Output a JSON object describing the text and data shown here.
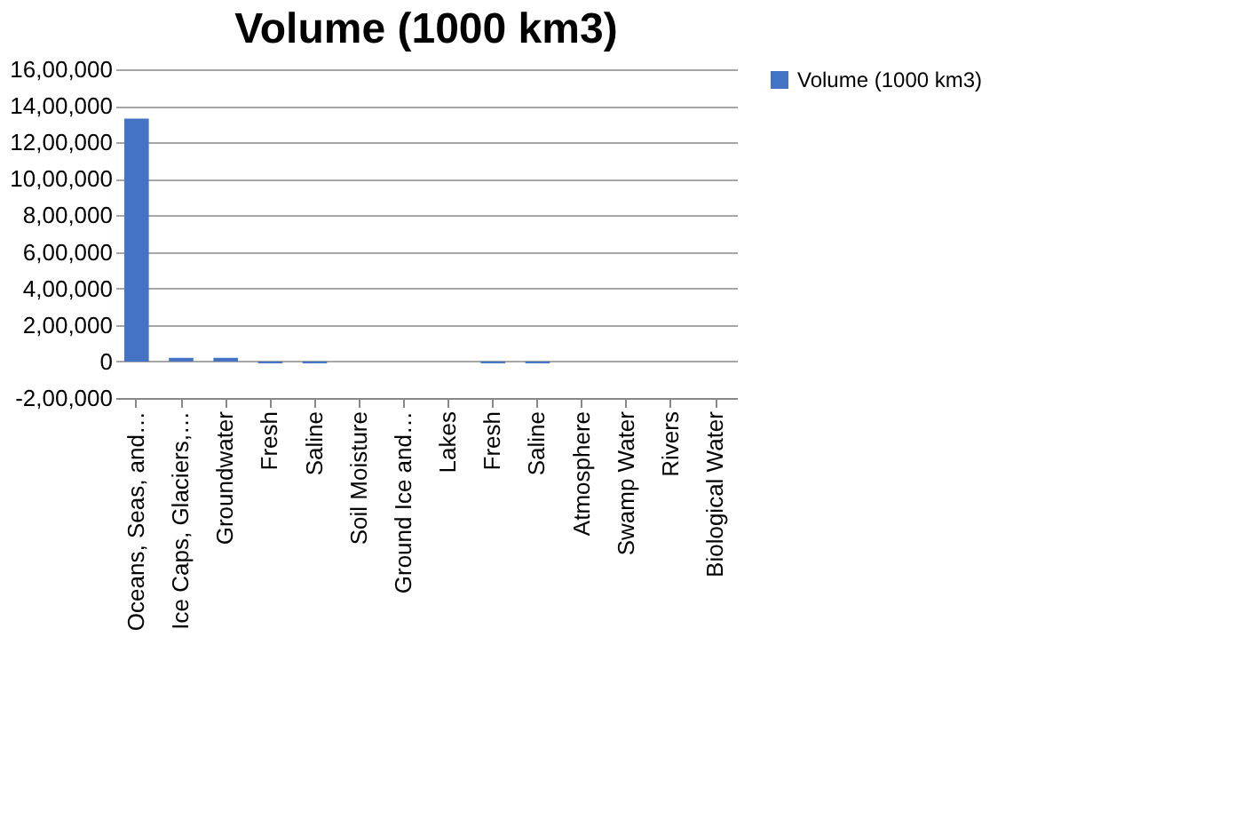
{
  "chart_data": {
    "type": "bar",
    "title": "Volume (1000 km3)",
    "categories": [
      "Oceans, Seas, and…",
      "Ice Caps, Glaciers,…",
      "Groundwater",
      "Fresh",
      "Saline",
      "Soil Moisture",
      "Ground Ice and…",
      "Lakes",
      "Fresh",
      "Saline",
      "Atmosphere",
      "Swamp Water",
      "Rivers",
      "Biological Water"
    ],
    "series": [
      {
        "name": "Volume (1000 km3)",
        "color": "#4472c4",
        "values": [
          1330000,
          20000,
          20000,
          -10000,
          -10000,
          0,
          0,
          0,
          -10000,
          -10000,
          0,
          0,
          0,
          0
        ]
      }
    ],
    "ylim": [
      -200000,
      1600000
    ],
    "yticks": [
      {
        "value": -200000,
        "label": "-2,00,000"
      },
      {
        "value": 0,
        "label": "0"
      },
      {
        "value": 200000,
        "label": "2,00,000"
      },
      {
        "value": 400000,
        "label": "4,00,000"
      },
      {
        "value": 600000,
        "label": "6,00,000"
      },
      {
        "value": 800000,
        "label": "8,00,000"
      },
      {
        "value": 1000000,
        "label": "10,00,000"
      },
      {
        "value": 1200000,
        "label": "12,00,000"
      },
      {
        "value": 1400000,
        "label": "14,00,000"
      },
      {
        "value": 1600000,
        "label": "16,00,000"
      }
    ],
    "grid": "y",
    "legend": "right"
  }
}
